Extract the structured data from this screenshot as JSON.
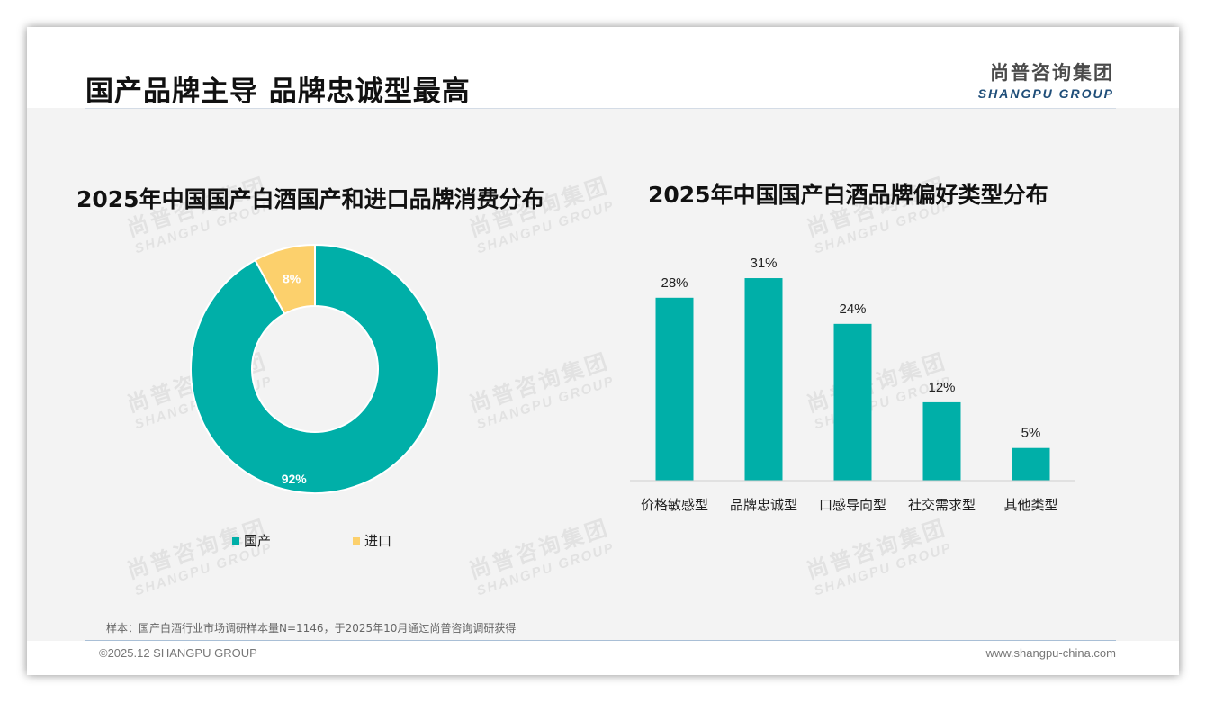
{
  "header": {
    "title": "国产品牌主导 品牌忠诚型最高",
    "logo_cn": "尚普咨询集团",
    "logo_en": "SHANGPU GROUP"
  },
  "watermark": {
    "cn": "尚普咨询集团",
    "en": "SHANGPU GROUP"
  },
  "chart_data": [
    {
      "type": "pie",
      "title": "2025年中国国产白酒国产和进口品牌消费分布",
      "categories": [
        "国产",
        "进口"
      ],
      "values": [
        92,
        8
      ],
      "labels": [
        "92%",
        "8%"
      ],
      "colors": [
        "#00afa8",
        "#fcd06c"
      ],
      "donut": true,
      "legend": "bottom"
    },
    {
      "type": "bar",
      "title": "2025年中国国产白酒品牌偏好类型分布",
      "categories": [
        "价格敏感型",
        "品牌忠诚型",
        "口感导向型",
        "社交需求型",
        "其他类型"
      ],
      "values": [
        28,
        31,
        24,
        12,
        5
      ],
      "labels": [
        "28%",
        "31%",
        "24%",
        "12%",
        "5%"
      ],
      "color": "#00afa8",
      "grid": false,
      "ylim": [
        0,
        35
      ]
    }
  ],
  "footer": {
    "note": "样本：国产白酒行业市场调研样本量N=1146，于2025年10月通过尚普咨询调研获得",
    "copyright": "©2025.12 SHANGPU GROUP",
    "website": "www.shangpu-china.com"
  }
}
